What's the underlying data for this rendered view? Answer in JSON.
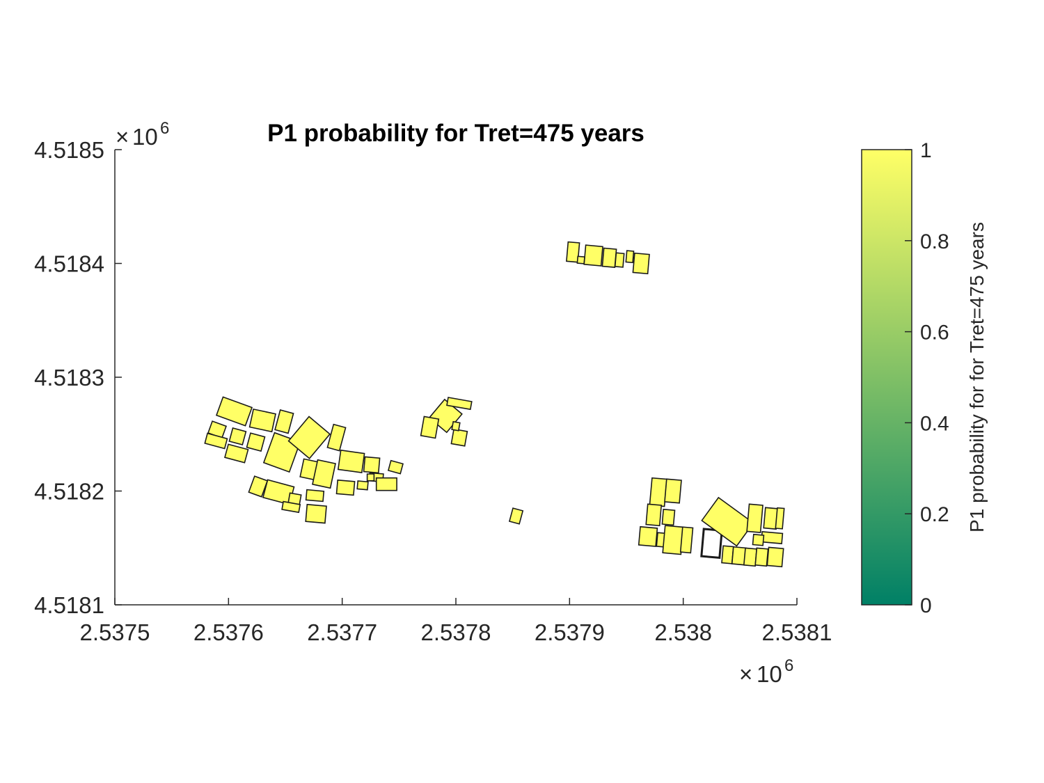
{
  "chart_data": {
    "type": "polygon-map",
    "title": "P1 probability for Tret=475 years",
    "xlabel": "",
    "ylabel": "",
    "xlim": [
      2537500,
      2538100
    ],
    "ylim": [
      4518100,
      4518500
    ],
    "x_ticks": [
      "2.5375",
      "2.5376",
      "2.5377",
      "2.5378",
      "2.5379",
      "2.538",
      "2.5381"
    ],
    "x_tick_values": [
      2537500,
      2537600,
      2537700,
      2537800,
      2537900,
      2538000,
      2538100
    ],
    "y_ticks": [
      "4.5185",
      "4.5184",
      "4.5183",
      "4.5182",
      "4.5181"
    ],
    "y_tick_values": [
      4518500,
      4518400,
      4518300,
      4518200,
      4518100
    ],
    "x_exponent": "10",
    "x_exponent_power": "6",
    "y_exponent": "10",
    "y_exponent_power": "6",
    "times_sign": "×",
    "colorbar": {
      "label": "P1 probability for for Tret=475 years",
      "range": [
        0,
        1
      ],
      "ticks": [
        "0",
        "0.2",
        "0.4",
        "0.6",
        "0.8",
        "1"
      ],
      "tick_values": [
        0,
        0.2,
        0.4,
        0.6,
        0.8,
        1
      ],
      "colormap": "summer",
      "color_low": "#008066",
      "color_high": "#FFFF66"
    },
    "buildings_format": "[center_x, center_y, width_m, height_m, rotation_deg, probability]",
    "buildings": [
      [
        2537605,
        4518270,
        27,
        17,
        -20,
        1
      ],
      [
        2537630,
        4518262,
        20,
        16,
        -12,
        1
      ],
      [
        2537649,
        4518261,
        12,
        18,
        -15,
        1
      ],
      [
        2537590,
        4518254,
        13,
        11,
        -20,
        1
      ],
      [
        2537608,
        4518248,
        12,
        12,
        -15,
        1
      ],
      [
        2537589,
        4518244,
        18,
        9,
        -15,
        1
      ],
      [
        2537624,
        4518243,
        13,
        13,
        -15,
        1
      ],
      [
        2537607,
        4518233,
        18,
        12,
        -15,
        1
      ],
      [
        2537647,
        4518234,
        24,
        28,
        -20,
        1
      ],
      [
        2537671,
        4518247,
        24,
        28,
        -40,
        1
      ],
      [
        2537695,
        4518247,
        11,
        21,
        -15,
        1
      ],
      [
        2537671,
        4518219,
        13,
        16,
        -12,
        1
      ],
      [
        2537684,
        4518215,
        16,
        22,
        -12,
        1
      ],
      [
        2537708,
        4518226,
        21,
        17,
        -8,
        1
      ],
      [
        2537726,
        4518223,
        13,
        13,
        -5,
        1
      ],
      [
        2537730,
        4518212,
        12,
        7,
        -5,
        1
      ],
      [
        2537747,
        4518221,
        11,
        9,
        -15,
        1
      ],
      [
        2537703,
        4518203,
        15,
        12,
        -5,
        1
      ],
      [
        2537718,
        4518205,
        9,
        7,
        -5,
        1
      ],
      [
        2537739,
        4518206,
        18,
        11,
        0,
        1
      ],
      [
        2537626,
        4518204,
        12,
        15,
        -20,
        1
      ],
      [
        2537644,
        4518199,
        24,
        16,
        -15,
        1
      ],
      [
        2537658,
        4518192,
        10,
        11,
        -10,
        1
      ],
      [
        2537655,
        4518186,
        15,
        7,
        -10,
        1
      ],
      [
        2537676,
        4518196,
        15,
        9,
        -5,
        1
      ],
      [
        2537677,
        4518180,
        17,
        15,
        -5,
        1
      ],
      [
        2537725,
        4518212,
        6,
        6,
        0,
        1
      ],
      [
        2537791,
        4518266,
        20,
        21,
        -40,
        1
      ],
      [
        2537777,
        4518256,
        13,
        17,
        -10,
        1
      ],
      [
        2537803,
        4518247,
        12,
        13,
        -10,
        1
      ],
      [
        2537803,
        4518277,
        21,
        7,
        -10,
        1
      ],
      [
        2537800,
        4518257,
        6,
        7,
        -10,
        1
      ],
      [
        2537853,
        4518178,
        9,
        12,
        -15,
        1
      ],
      [
        2537903,
        4518410,
        10,
        17,
        -5,
        1
      ],
      [
        2537921,
        4518407,
        15,
        17,
        -5,
        1
      ],
      [
        2537935,
        4518405,
        11,
        16,
        -5,
        1
      ],
      [
        2537944,
        4518403,
        7,
        12,
        -5,
        1
      ],
      [
        2537953,
        4518406,
        6,
        10,
        -5,
        1
      ],
      [
        2537963,
        4518400,
        13,
        17,
        -5,
        1
      ],
      [
        2537910,
        4518403,
        6,
        6,
        -5,
        1
      ],
      [
        2537978,
        4518199,
        13,
        24,
        -5,
        1
      ],
      [
        2537991,
        4518200,
        13,
        20,
        -5,
        1
      ],
      [
        2537974,
        4518179,
        12,
        18,
        -5,
        1
      ],
      [
        2537987,
        4518177,
        10,
        13,
        -5,
        1
      ],
      [
        2537969,
        4518160,
        15,
        16,
        -5,
        1
      ],
      [
        2537982,
        4518157,
        10,
        12,
        -5,
        1
      ],
      [
        2537991,
        4518157,
        16,
        24,
        -5,
        1
      ],
      [
        2538003,
        4518157,
        9,
        22,
        -5,
        1
      ],
      [
        2538025,
        4518154,
        16,
        24,
        -5,
        null
      ],
      [
        2538039,
        4518173,
        38,
        25,
        -36,
        1
      ],
      [
        2538039,
        4518144,
        9,
        15,
        -5,
        1
      ],
      [
        2538049,
        4518143,
        11,
        15,
        -5,
        1
      ],
      [
        2538059,
        4518142,
        10,
        15,
        -5,
        1
      ],
      [
        2538063,
        4518176,
        12,
        24,
        -5,
        1
      ],
      [
        2538077,
        4518176,
        11,
        18,
        -5,
        1
      ],
      [
        2538085,
        4518176,
        6,
        18,
        -5,
        1
      ],
      [
        2538078,
        4518159,
        18,
        9,
        -5,
        1
      ],
      [
        2538081,
        4518142,
        13,
        16,
        -5,
        1
      ],
      [
        2538069,
        4518142,
        10,
        15,
        -5,
        1
      ],
      [
        2538066,
        4518157,
        9,
        9,
        -5,
        1
      ]
    ]
  }
}
